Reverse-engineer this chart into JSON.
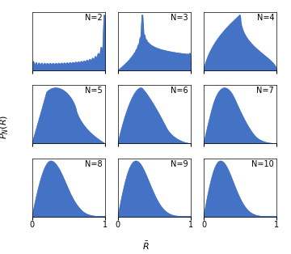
{
  "N_values": [
    2,
    3,
    4,
    5,
    6,
    7,
    8,
    9,
    10
  ],
  "fill_color": "#4472C4",
  "line_color": "#4472C4",
  "xlabel": "$\\bar{R}$",
  "ylabel": "$P_N(\\bar{R})$",
  "xlim": [
    0,
    1
  ],
  "figsize": [
    3.6,
    3.14
  ],
  "dpi": 100,
  "nrows": 3,
  "ncols": 3,
  "label_fontsize": 7,
  "axlabel_fontsize": 8
}
